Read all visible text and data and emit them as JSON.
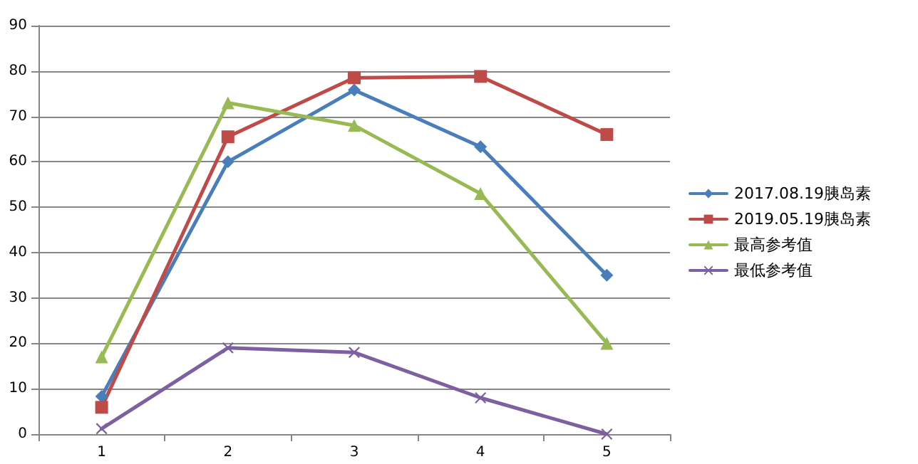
{
  "chart_data": {
    "type": "line",
    "categories": [
      "1",
      "2",
      "3",
      "4",
      "5"
    ],
    "series": [
      {
        "name": "2017.08.19胰岛素",
        "color": "#4a7ebb",
        "marker": "diamond",
        "values": [
          8.3,
          60,
          75.8,
          63.3,
          35
        ]
      },
      {
        "name": "2019.05.19胰岛素",
        "color": "#be4b48",
        "marker": "square",
        "values": [
          5.9,
          65.5,
          78.5,
          78.8,
          66
        ]
      },
      {
        "name": "最高参考值",
        "color": "#98b954",
        "marker": "triangle",
        "values": [
          17,
          73,
          68,
          53,
          20
        ]
      },
      {
        "name": "最低参考值",
        "color": "#7d60a0",
        "marker": "cross",
        "values": [
          1.2,
          19,
          18,
          8,
          0
        ]
      }
    ],
    "ylim": [
      0,
      90
    ],
    "yticks": [
      0,
      10,
      20,
      30,
      40,
      50,
      60,
      70,
      80,
      90
    ],
    "grid": "y",
    "legend": "right",
    "line_style": "solid"
  }
}
